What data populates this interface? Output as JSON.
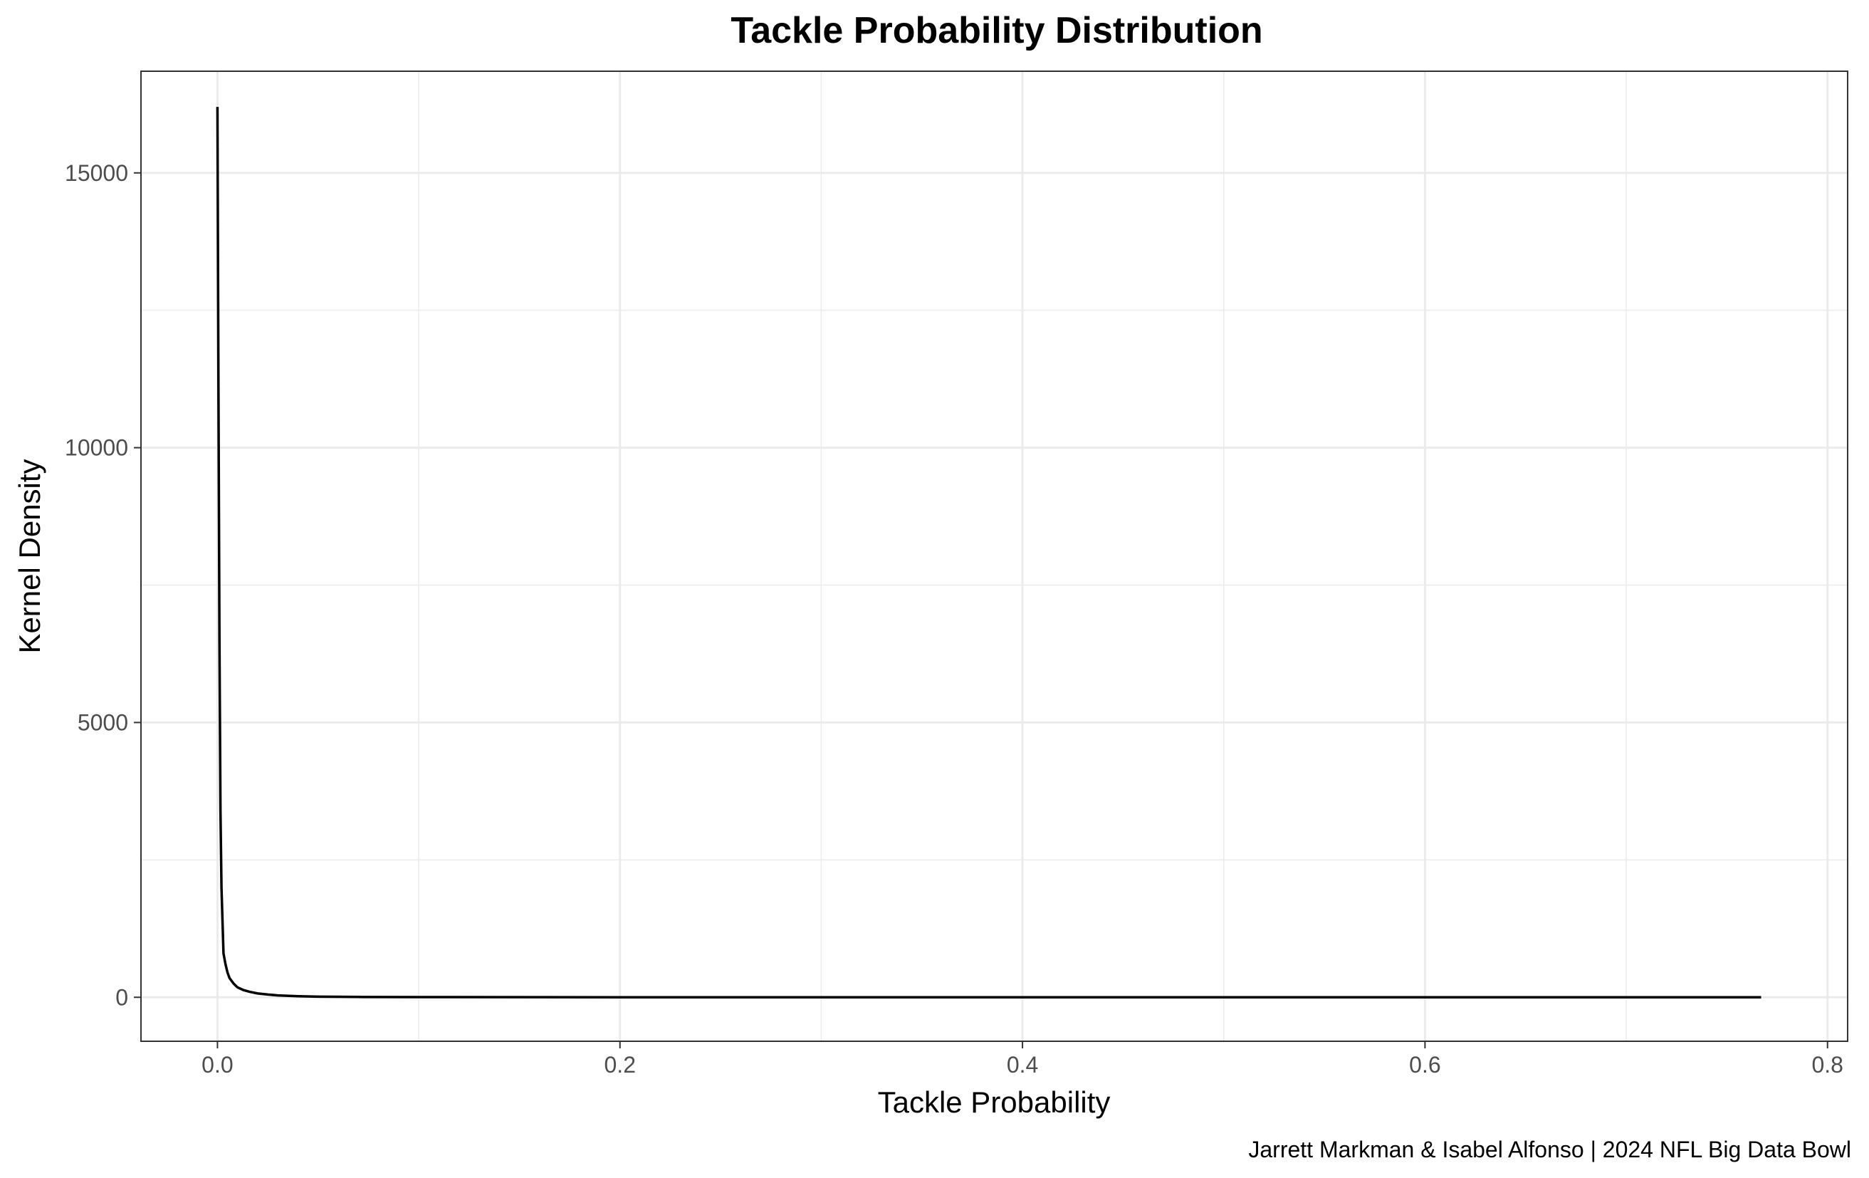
{
  "chart_data": {
    "type": "line",
    "title": "Tackle Probability Distribution",
    "xlabel": "Tackle Probability",
    "ylabel": "Kernel Density",
    "caption": "Jarrett Markman & Isabel Alfonso | 2024 NFL Big Data Bowl",
    "xlim": [
      -0.038,
      0.81
    ],
    "ylim": [
      -800,
      16850
    ],
    "x_ticks": [
      0.0,
      0.2,
      0.4,
      0.6,
      0.8
    ],
    "x_tick_labels": [
      "0.0",
      "0.2",
      "0.4",
      "0.6",
      "0.8"
    ],
    "x_minor_ticks": [
      0.1,
      0.3,
      0.5,
      0.7
    ],
    "y_ticks": [
      0,
      5000,
      10000,
      15000
    ],
    "y_tick_labels": [
      "0",
      "5000",
      "10000",
      "15000"
    ],
    "y_minor_ticks": [
      2500,
      7500,
      12500
    ],
    "grid": true,
    "colors": {
      "line": "#000000",
      "grid": "#ebebeb",
      "panel_border": "#333333",
      "tick_label": "#4d4d4d"
    },
    "series": [
      {
        "x": [
          0.0,
          0.0005,
          0.001,
          0.0015,
          0.002,
          0.003,
          0.004,
          0.005,
          0.006,
          0.008,
          0.01,
          0.013,
          0.016,
          0.02,
          0.025,
          0.03,
          0.04,
          0.05,
          0.07,
          0.1,
          0.2,
          0.3,
          0.4,
          0.5,
          0.6,
          0.7,
          0.767
        ],
        "y": [
          16200,
          11000,
          6500,
          3400,
          2000,
          800,
          600,
          450,
          350,
          250,
          180,
          130,
          100,
          70,
          50,
          35,
          20,
          12,
          6,
          3,
          1,
          0,
          0,
          0,
          0,
          0,
          0
        ]
      }
    ]
  }
}
